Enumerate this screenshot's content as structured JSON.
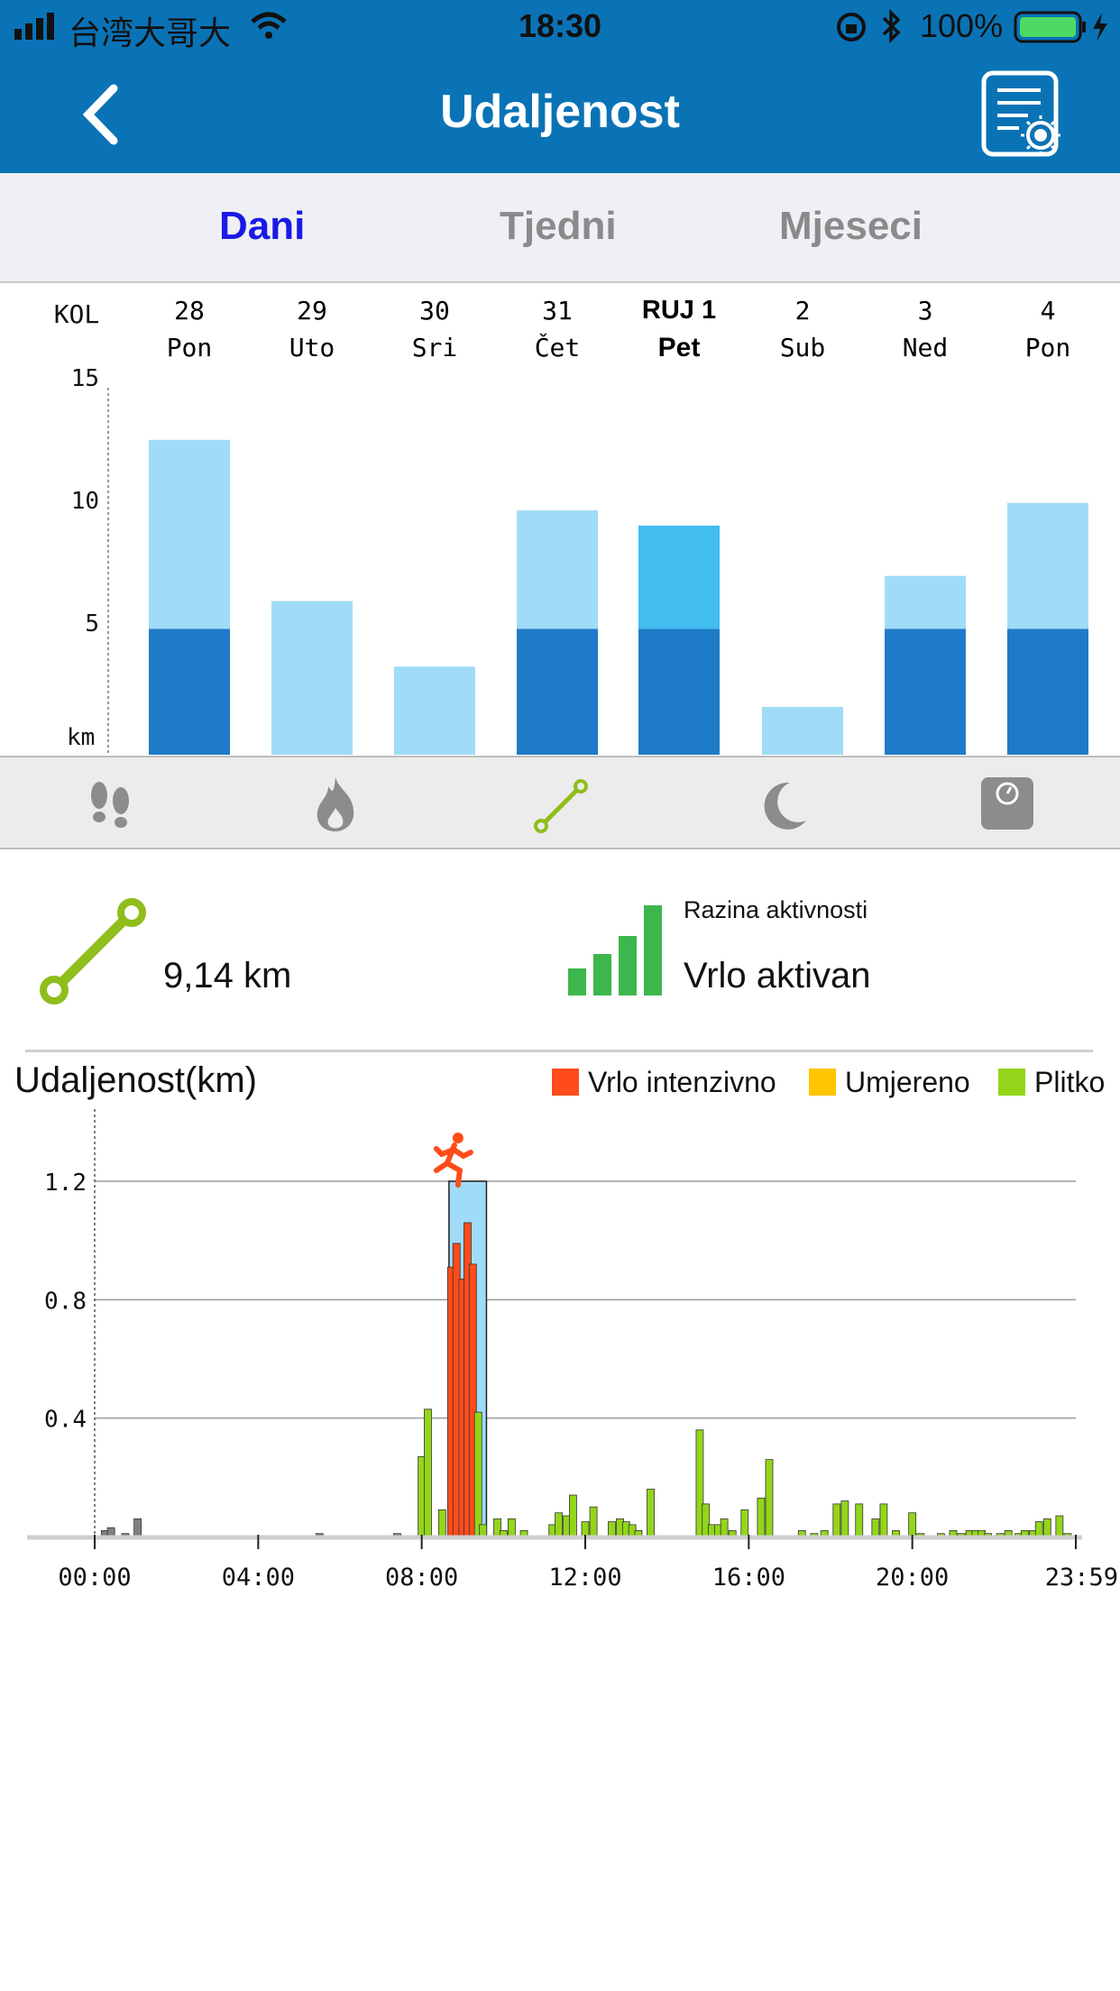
{
  "status_bar": {
    "carrier": "台湾大哥大",
    "time": "18:30",
    "battery": "100%"
  },
  "header": {
    "title": "Udaljenost",
    "back_icon": "chevron-left-icon",
    "report_icon": "report-brightness-icon"
  },
  "tabs": [
    {
      "label": "Dani",
      "active": true
    },
    {
      "label": "Tjedni",
      "active": false
    },
    {
      "label": "Mjeseci",
      "active": false
    }
  ],
  "week_header": {
    "week_label": "KOL",
    "days": [
      {
        "date": "28",
        "weekday": "Pon"
      },
      {
        "date": "29",
        "weekday": "Uto"
      },
      {
        "date": "30",
        "weekday": "Sri"
      },
      {
        "date": "31",
        "weekday": "Čet"
      },
      {
        "date": "RUJ 1",
        "weekday": "Pet",
        "selected": true
      },
      {
        "date": "2",
        "weekday": "Sub"
      },
      {
        "date": "3",
        "weekday": "Ned"
      },
      {
        "date": "4",
        "weekday": "Pon"
      }
    ]
  },
  "metric_icons": [
    {
      "name": "footsteps-icon",
      "active": false
    },
    {
      "name": "flame-icon",
      "active": false
    },
    {
      "name": "distance-icon",
      "active": true
    },
    {
      "name": "moon-icon",
      "active": false
    },
    {
      "name": "scale-icon",
      "active": false
    }
  ],
  "summary": {
    "distance": "9,14 km",
    "activity_label": "Razina aktivnosti",
    "activity_value": "Vrlo aktivan"
  },
  "colors": {
    "header_blue": "#0a73b6",
    "goal_dark": "#1e7bc8",
    "light": "#a0dcf7",
    "selected_upper": "#42bdf0",
    "intense": "#ff4c1a",
    "moderate": "#ffc400",
    "light_activity": "#94d51a"
  },
  "chart_data": [
    {
      "type": "bar",
      "categories": [
        "28 Pon",
        "29 Uto",
        "30 Sri",
        "31 Čet",
        "RUJ 1 Pet",
        "2 Sub",
        "3 Ned",
        "4 Pon"
      ],
      "series": [
        {
          "values": [
            5,
            0,
            0,
            5,
            5,
            0,
            5,
            5
          ]
        },
        {
          "values": [
            7.5,
            6.1,
            3.5,
            4.7,
            4.1,
            1.9,
            2.1,
            5.0
          ]
        }
      ],
      "ylim": [
        0,
        15
      ],
      "yticks": [
        "15",
        "10",
        "5"
      ],
      "ylabel": "km",
      "selected_index": 4
    },
    {
      "type": "bar",
      "title": "Udaljenost(km)",
      "legend": [
        "Vrlo intenzivno",
        "Umjereno",
        "Plitko"
      ],
      "legend_placement": "top-right",
      "xticks": [
        "00:00",
        "04:00",
        "08:00",
        "12:00",
        "16:00",
        "20:00",
        "23:59"
      ],
      "yticks": [
        "1.2",
        "0.8",
        "0.4"
      ],
      "ylim": [
        0,
        1.3
      ],
      "grid": true,
      "highlight_window": [
        "08:40",
        "09:35"
      ],
      "bars_x_hours": [
        0.25,
        0.4,
        0.75,
        1.05,
        5.5,
        7.4,
        8.0,
        8.15,
        8.5,
        8.72,
        8.85,
        9.0,
        9.12,
        9.25,
        9.38,
        9.5,
        9.85,
        10.0,
        10.2,
        10.5,
        11.2,
        11.35,
        11.55,
        11.7,
        12.0,
        12.2,
        12.65,
        12.85,
        13.0,
        13.15,
        13.3,
        13.6,
        14.8,
        14.95,
        15.1,
        15.25,
        15.4,
        15.6,
        15.9,
        16.3,
        16.5,
        17.3,
        17.6,
        17.85,
        18.15,
        18.35,
        18.7,
        19.1,
        19.3,
        19.6,
        20.0,
        20.2,
        20.7,
        21.0,
        21.2,
        21.4,
        21.55,
        21.7,
        21.85,
        22.15,
        22.35,
        22.6,
        22.75,
        22.95,
        23.1,
        23.3,
        23.6,
        23.8
      ],
      "bars_values": [
        0.02,
        0.03,
        0.01,
        0.06,
        0.01,
        0.01,
        0.27,
        0.43,
        0.09,
        0.91,
        0.99,
        0.87,
        1.06,
        0.92,
        0.42,
        0.04,
        0.06,
        0.02,
        0.06,
        0.02,
        0.04,
        0.08,
        0.07,
        0.14,
        0.05,
        0.1,
        0.05,
        0.06,
        0.05,
        0.04,
        0.02,
        0.16,
        0.36,
        0.11,
        0.04,
        0.04,
        0.06,
        0.02,
        0.09,
        0.13,
        0.26,
        0.02,
        0.01,
        0.02,
        0.11,
        0.12,
        0.11,
        0.06,
        0.11,
        0.02,
        0.08,
        0.01,
        0.01,
        0.02,
        0.01,
        0.02,
        0.02,
        0.02,
        0.01,
        0.01,
        0.02,
        0.01,
        0.02,
        0.02,
        0.05,
        0.06,
        0.07,
        0.01
      ],
      "bars_kind": [
        "none",
        "none",
        "none",
        "none",
        "none",
        "none",
        "light",
        "light",
        "light",
        "intense",
        "intense",
        "intense",
        "intense",
        "intense",
        "light",
        "light",
        "light",
        "light",
        "light",
        "light",
        "light",
        "light",
        "light",
        "light",
        "light",
        "light",
        "light",
        "light",
        "light",
        "light",
        "light",
        "light",
        "light",
        "light",
        "light",
        "light",
        "light",
        "light",
        "light",
        "light",
        "light",
        "light",
        "light",
        "light",
        "light",
        "light",
        "light",
        "light",
        "light",
        "light",
        "light",
        "light",
        "light",
        "light",
        "light",
        "light",
        "light",
        "light",
        "light",
        "light",
        "light",
        "light",
        "light",
        "light",
        "light",
        "light",
        "light",
        "light"
      ]
    }
  ]
}
